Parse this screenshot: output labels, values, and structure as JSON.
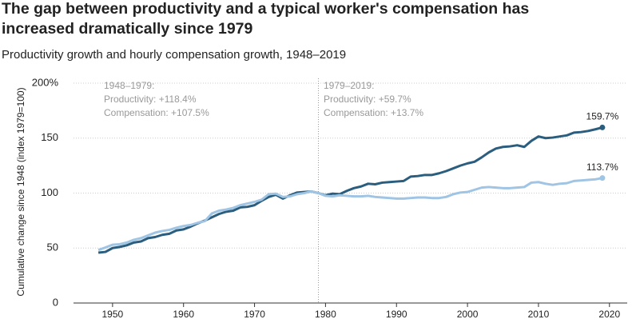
{
  "chart_data": {
    "type": "line",
    "title": [
      "The gap between productivity and a typical worker's compensation has",
      "increased dramatically since 1979"
    ],
    "subtitle": "Productivity growth and hourly compensation growth, 1948–2019",
    "y_label": "Cumulative change since 1948 (index 1979=100)",
    "x": [
      1948,
      1949,
      1950,
      1951,
      1952,
      1953,
      1954,
      1955,
      1956,
      1957,
      1958,
      1959,
      1960,
      1961,
      1962,
      1963,
      1964,
      1965,
      1966,
      1967,
      1968,
      1969,
      1970,
      1971,
      1972,
      1973,
      1974,
      1975,
      1976,
      1977,
      1978,
      1979,
      1980,
      1981,
      1982,
      1983,
      1984,
      1985,
      1986,
      1987,
      1988,
      1989,
      1990,
      1991,
      1992,
      1993,
      1994,
      1995,
      1996,
      1997,
      1998,
      1999,
      2000,
      2001,
      2002,
      2003,
      2004,
      2005,
      2006,
      2007,
      2008,
      2009,
      2010,
      2011,
      2012,
      2013,
      2014,
      2015,
      2016,
      2017,
      2018,
      2019
    ],
    "series": [
      {
        "color": "#2b5e7e",
        "values": [
          45.8,
          46.5,
          50,
          51,
          52.5,
          55,
          56,
          59,
          60,
          62,
          63,
          66,
          67,
          69.5,
          72.5,
          75,
          78,
          81,
          83,
          84,
          87,
          87.5,
          89,
          93,
          96.5,
          98.5,
          95,
          98,
          100.5,
          101,
          101.5,
          100,
          98,
          99.5,
          99,
          102,
          104.5,
          106,
          108.5,
          108,
          109.5,
          110,
          110.5,
          111,
          115,
          115.5,
          116.5,
          116.5,
          118,
          120,
          122.5,
          125,
          127,
          128.5,
          132.5,
          137,
          140.5,
          142,
          142.5,
          143.5,
          142,
          147.5,
          151.5,
          150,
          150.5,
          151.5,
          152.5,
          155,
          155.5,
          156.5,
          158,
          159.7
        ],
        "value_labels": [
          null,
          null,
          null,
          null,
          null,
          null,
          null,
          null,
          null,
          null,
          null,
          null,
          null,
          null,
          null,
          null,
          null,
          null,
          null,
          null,
          null,
          null,
          null,
          null,
          null,
          null,
          null,
          null,
          null,
          null,
          null,
          null,
          null,
          null,
          null,
          null,
          null,
          null,
          null,
          null,
          null,
          null,
          null,
          null,
          null,
          null,
          null,
          null,
          null,
          null,
          null,
          null,
          null,
          null,
          null,
          null,
          null,
          null,
          null,
          null,
          null,
          null,
          null,
          null,
          null,
          null,
          null,
          null,
          null,
          null,
          null,
          "159.7%"
        ]
      },
      {
        "color": "#9fc4e4",
        "values": [
          48.2,
          50.5,
          53,
          53.5,
          55,
          57.5,
          59,
          61.5,
          64,
          65.5,
          66.5,
          68.5,
          70,
          71,
          73,
          74.5,
          81.5,
          84,
          85,
          86.5,
          89,
          90.5,
          92,
          94,
          99,
          99.5,
          96.5,
          97,
          99,
          100,
          101.5,
          100,
          97.5,
          97,
          98,
          97.5,
          97,
          97,
          97.5,
          96.5,
          96,
          95.5,
          95,
          95,
          95.5,
          96,
          96,
          95.5,
          95.5,
          96.5,
          99,
          100.5,
          101,
          103,
          105,
          105.5,
          105,
          104.5,
          104.5,
          105,
          105.5,
          109.5,
          110,
          108.5,
          107.5,
          108.5,
          109,
          111,
          111.5,
          112,
          112.5,
          113.7
        ],
        "value_labels": [
          null,
          null,
          null,
          null,
          null,
          null,
          null,
          null,
          null,
          null,
          null,
          null,
          null,
          null,
          null,
          null,
          null,
          null,
          null,
          null,
          null,
          null,
          null,
          null,
          null,
          null,
          null,
          null,
          null,
          null,
          null,
          null,
          null,
          null,
          null,
          null,
          null,
          null,
          null,
          null,
          null,
          null,
          null,
          null,
          null,
          null,
          null,
          null,
          null,
          null,
          null,
          null,
          null,
          null,
          null,
          null,
          null,
          null,
          null,
          null,
          null,
          null,
          null,
          null,
          null,
          null,
          null,
          null,
          null,
          null,
          null,
          "113.7%"
        ]
      }
    ],
    "xlim": [
      1944.5,
      2022.5
    ],
    "xticks": [
      1950,
      1960,
      1970,
      1980,
      1990,
      2000,
      2010,
      2020
    ],
    "ylim": [
      0,
      200
    ],
    "yticks": [
      0,
      50,
      100,
      150,
      {
        "value": 200,
        "label": "200%"
      }
    ],
    "grid": true,
    "vline": 1979,
    "annotations": [
      [
        "1948–1979:",
        "Productivity: +118.4%",
        "Compensation: +107.5%"
      ],
      [
        "1979–2019:",
        "Productivity: +59.7%",
        "Compensation: +13.7%"
      ]
    ]
  }
}
